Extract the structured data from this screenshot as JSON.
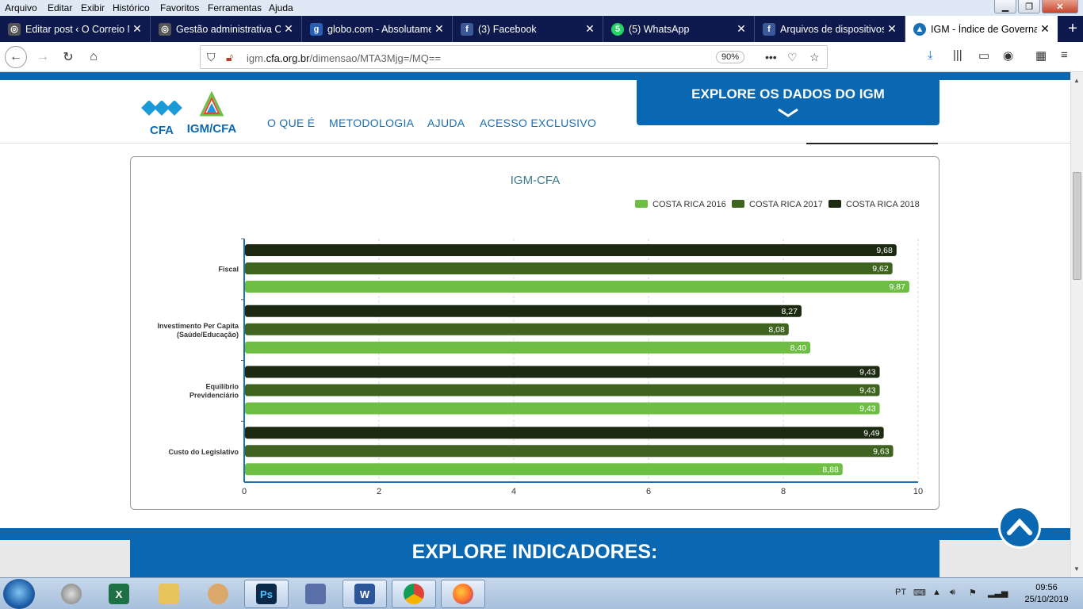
{
  "menu": [
    "Arquivo",
    "Editar",
    "Exibir",
    "Histórico",
    "Favoritos",
    "Ferramentas",
    "Ajuda"
  ],
  "tabs": [
    {
      "label": "Editar post ‹ O Correio N",
      "icon": "wordpress-icon",
      "active": false
    },
    {
      "label": "Gestão administrativa CF",
      "icon": "wordpress-icon",
      "active": false
    },
    {
      "label": "globo.com - Absolutame",
      "icon": "globo-icon",
      "active": false
    },
    {
      "label": "(3) Facebook",
      "icon": "facebook-icon",
      "active": false
    },
    {
      "label": "(5) WhatsApp",
      "icon": "whatsapp-icon",
      "active": false
    },
    {
      "label": "Arquivos de dispositivos",
      "icon": "facebook-icon",
      "active": false
    },
    {
      "label": "IGM - Índice de Governa",
      "icon": "igm-icon",
      "active": true
    }
  ],
  "url": {
    "prefix": "igm.",
    "domain": "cfa.org.br",
    "path": "/dimensao/MTA3Mjg=/MQ==",
    "zoom": "90%"
  },
  "site": {
    "logo_cfa": "CFA",
    "logo_igm": "IGM/CFA",
    "nav": [
      "O QUE É",
      "METODOLOGIA",
      "AJUDA",
      "ACESSO EXCLUSIVO"
    ],
    "explore_button": "EXPLORE OS DADOS DO IGM",
    "explore_indicators": "EXPLORE INDICADORES:"
  },
  "colors": {
    "brand_blue": "#0a68b2",
    "series_2016": "#6fbe44",
    "series_2017": "#3f6420",
    "series_2018": "#1b2a10",
    "title_teal": "#3d7a8a"
  },
  "chart_data": {
    "type": "bar",
    "orientation": "horizontal",
    "title": "IGM-CFA",
    "legend_position": "top-right",
    "categories": [
      "Fiscal",
      "Investimento Per Capita (Saúde/Educação)",
      "Equilíbrio Previdenciário",
      "Custo do Legislativo"
    ],
    "category_lines": [
      [
        "Fiscal"
      ],
      [
        "Investimento Per Capita",
        "(Saúde/Educação)"
      ],
      [
        "Equilíbrio",
        "Previdenciário"
      ],
      [
        "Custo do Legislativo"
      ]
    ],
    "series": [
      {
        "name": "COSTA RICA 2018",
        "color": "#1b2a10",
        "values": [
          9.68,
          8.27,
          9.43,
          9.49
        ],
        "labels": [
          "9,68",
          "8,27",
          "9,43",
          "9,49"
        ]
      },
      {
        "name": "COSTA RICA 2017",
        "color": "#3f6420",
        "values": [
          9.62,
          8.08,
          9.43,
          9.63
        ],
        "labels": [
          "9,62",
          "8,08",
          "9,43",
          "9,63"
        ]
      },
      {
        "name": "COSTA RICA 2016",
        "color": "#6fbe44",
        "values": [
          9.87,
          8.4,
          9.43,
          8.88
        ],
        "labels": [
          "9,87",
          "8,40",
          "9,43",
          "8,88"
        ]
      }
    ],
    "legend_order": [
      "COSTA RICA 2016",
      "COSTA RICA 2017",
      "COSTA RICA 2018"
    ],
    "xlim": [
      0,
      10
    ],
    "xticks": [
      0,
      2,
      4,
      6,
      8,
      10
    ],
    "grid": true
  },
  "taskbar": {
    "apps": [
      "chrome-alt-icon",
      "excel-icon",
      "explorer-icon",
      "paint-icon",
      "photoshop-icon",
      "movie-maker-icon",
      "word-icon",
      "chrome-icon",
      "firefox-icon"
    ],
    "lang": "PT",
    "time": "09:56",
    "date": "25/10/2019"
  }
}
